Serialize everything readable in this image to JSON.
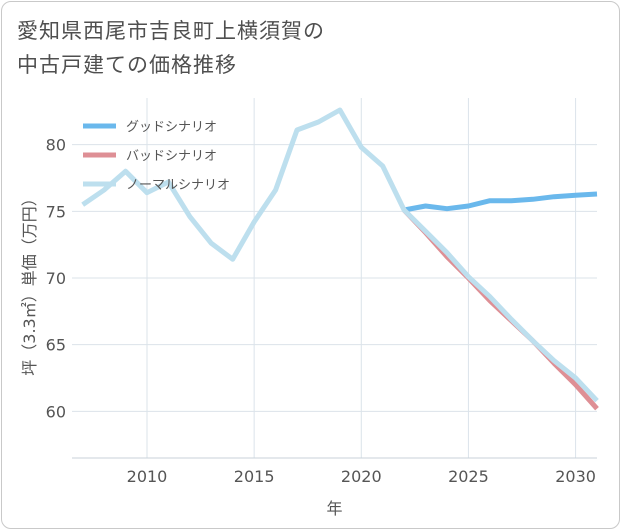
{
  "title_line1": "愛知県西尾市吉良町上横須賀の",
  "title_line2": "中古戸建ての価格推移",
  "chart_data": {
    "type": "line",
    "title": "愛知県西尾市吉良町上横須賀の中古戸建ての価格推移",
    "xlabel": "年",
    "ylabel": "坪（3.3㎡）単価（万円）",
    "xlim": [
      2006.5,
      2031
    ],
    "ylim": [
      56.5,
      83.5
    ],
    "xticks": [
      2010,
      2015,
      2020,
      2025,
      2030
    ],
    "yticks": [
      60,
      65,
      70,
      75,
      80
    ],
    "grid": true,
    "legend_position": "top-left",
    "series": [
      {
        "name": "グッドシナリオ",
        "color": "#6ab8ec",
        "x": [
          2022,
          2023,
          2024,
          2025,
          2026,
          2027,
          2028,
          2029,
          2030,
          2031
        ],
        "values": [
          75.1,
          75.4,
          75.2,
          75.4,
          75.8,
          75.8,
          75.9,
          76.1,
          76.2,
          76.3
        ]
      },
      {
        "name": "バッドシナリオ",
        "color": "#de8f95",
        "x": [
          2022,
          2023,
          2024,
          2025,
          2026,
          2027,
          2028,
          2029,
          2030,
          2031
        ],
        "values": [
          75.1,
          73.4,
          71.6,
          70.0,
          68.3,
          66.8,
          65.3,
          63.6,
          62.0,
          60.2
        ]
      },
      {
        "name": "ノーマルシナリオ",
        "color": "#bddfee",
        "x": [
          2007,
          2008,
          2009,
          2010,
          2011,
          2012,
          2013,
          2014,
          2015,
          2016,
          2017,
          2018,
          2019,
          2020,
          2021,
          2022,
          2023,
          2024,
          2025,
          2026,
          2027,
          2028,
          2029,
          2030,
          2031
        ],
        "values": [
          75.5,
          76.6,
          78.0,
          76.4,
          77.2,
          74.6,
          72.6,
          71.4,
          74.2,
          76.6,
          81.1,
          81.7,
          82.6,
          79.8,
          78.4,
          75.1,
          73.5,
          71.9,
          70.1,
          68.6,
          66.9,
          65.3,
          63.8,
          62.5,
          60.8
        ]
      }
    ]
  }
}
